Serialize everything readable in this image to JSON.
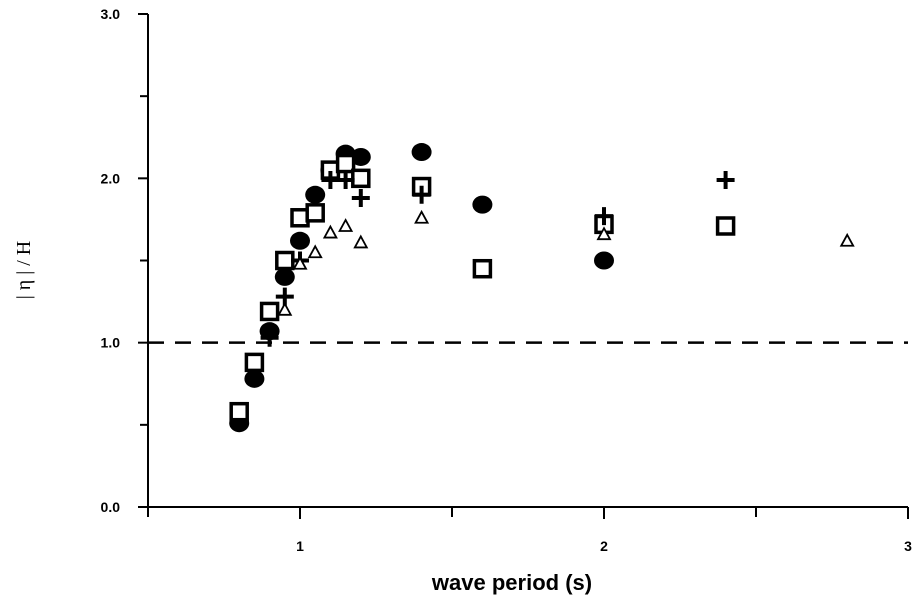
{
  "chart_data": {
    "type": "scatter",
    "title": "",
    "xlabel": "wave period (s)",
    "ylabel": "| η | / H",
    "xlim": [
      0.5,
      3.0
    ],
    "ylim": [
      0.0,
      3.0
    ],
    "x_ticks": [
      1,
      2,
      3
    ],
    "x_ticks_minor": [
      0.5,
      1.5,
      2.5
    ],
    "y_tick_labels": [
      "0.0",
      "1.0",
      "2.0",
      "3.0"
    ],
    "y_ticks": [
      0.0,
      1.0,
      2.0,
      3.0
    ],
    "y_ticks_minor": [
      0.5,
      1.5,
      2.5
    ],
    "grid": false,
    "reference_line": {
      "y": 1.0,
      "style": "dashed"
    },
    "series": [
      {
        "marker": "filled-circle",
        "points": [
          [
            0.8,
            0.51
          ],
          [
            0.85,
            0.78
          ],
          [
            0.9,
            1.07
          ],
          [
            0.95,
            1.4
          ],
          [
            1.0,
            1.62
          ],
          [
            1.05,
            1.9
          ],
          [
            1.1,
            2.05
          ],
          [
            1.15,
            2.15
          ],
          [
            1.2,
            2.13
          ],
          [
            1.4,
            2.16
          ],
          [
            1.6,
            1.84
          ],
          [
            2.0,
            1.5
          ]
        ]
      },
      {
        "marker": "open-square",
        "points": [
          [
            0.8,
            0.58
          ],
          [
            0.85,
            0.88
          ],
          [
            0.9,
            1.19
          ],
          [
            0.95,
            1.5
          ],
          [
            1.0,
            1.76
          ],
          [
            1.05,
            1.79
          ],
          [
            1.1,
            2.05
          ],
          [
            1.15,
            2.09
          ],
          [
            1.2,
            2.0
          ],
          [
            1.4,
            1.95
          ],
          [
            1.6,
            1.45
          ],
          [
            2.0,
            1.72
          ],
          [
            2.4,
            1.71
          ]
        ]
      },
      {
        "marker": "plus",
        "points": [
          [
            0.9,
            1.03
          ],
          [
            0.95,
            1.28
          ],
          [
            1.0,
            1.5
          ],
          [
            1.1,
            1.99
          ],
          [
            1.15,
            1.99
          ],
          [
            1.2,
            1.88
          ],
          [
            1.4,
            1.9
          ],
          [
            2.0,
            1.77
          ],
          [
            2.4,
            1.99
          ]
        ]
      },
      {
        "marker": "open-triangle",
        "points": [
          [
            0.95,
            1.2
          ],
          [
            1.0,
            1.48
          ],
          [
            1.05,
            1.55
          ],
          [
            1.1,
            1.67
          ],
          [
            1.15,
            1.71
          ],
          [
            1.2,
            1.61
          ],
          [
            1.4,
            1.76
          ],
          [
            2.0,
            1.66
          ],
          [
            2.8,
            1.62
          ]
        ]
      }
    ]
  }
}
